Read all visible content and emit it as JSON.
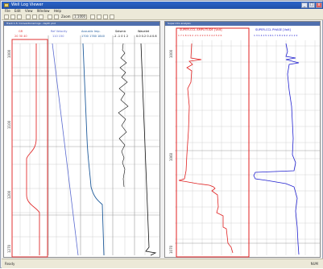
{
  "window": {
    "title": "Well Log Viewer",
    "minimize": "_",
    "maximize": "□",
    "close": "x"
  },
  "menu": [
    "File",
    "Edit",
    "View",
    "Window",
    "Help"
  ],
  "toolbar": {
    "zoom_label": "Zoom",
    "scale_label": "1:1000"
  },
  "left_pane": {
    "subtitle": "Track 1-5: Conventional logs - depth plot",
    "tracks": [
      {
        "header": "GR",
        "scale": "20  30  40",
        "color": "#e23030"
      },
      {
        "header": "Ref Velocity",
        "scale": "110    150",
        "color": "#5a6ad0"
      },
      {
        "header": "Acoustic Imp.",
        "scale": "1700  1780  1840",
        "color": "#1e5a9a"
      },
      {
        "header": "Seismic",
        "scale": "-2 -1 0 1 2",
        "color": "#000000"
      },
      {
        "header": "Wavelet",
        "scale": "0.0 0.2 0.4 0.6",
        "color": "#000000"
      }
    ],
    "depth_labels": [
      "1000",
      "1100",
      "1200",
      "1270"
    ]
  },
  "right_pane": {
    "subtitle": "Super-CCL analysis",
    "tracks": [
      {
        "header": "SUPER-CCL AMPLITUDE [Volt]",
        "scale": "1 7 1 8 1 9 2 .2 1 2 2 2 3 2 4 2 5 2 6",
        "color": "#e02020"
      },
      {
        "header": "SUPER-CCL PHASE [Volt]",
        "scale": "1 3 1 4 1 5 1 6 1 7 1 8 1 9 2 .2 1 2 2",
        "color": "#2020d0"
      }
    ],
    "depth_labels": [
      "1000",
      "1060",
      "1070"
    ]
  },
  "status": {
    "left": "Ready",
    "right": "NUM"
  },
  "colors": {
    "title_bar": "#1f4fa8",
    "red_track_border": "#e23030",
    "grid": "#c8c8c8"
  }
}
